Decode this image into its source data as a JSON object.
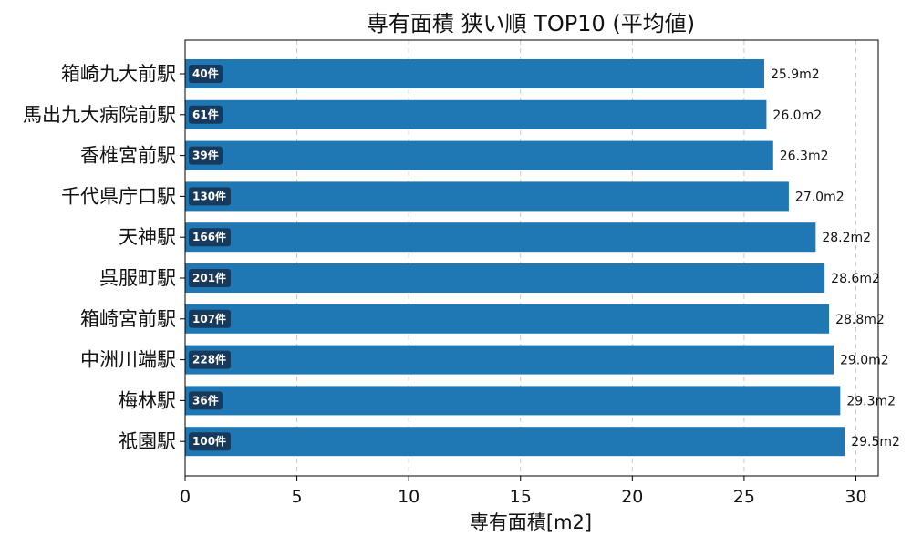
{
  "chart_data": {
    "type": "bar",
    "orientation": "horizontal",
    "title": "専有面積 狭い順 TOP10 (平均値)",
    "xlabel": "専有面積[m2]",
    "ylabel": "",
    "xlim": [
      0,
      31
    ],
    "xticks": [
      0,
      5,
      10,
      15,
      20,
      25,
      30
    ],
    "grid": "x-dashed",
    "bar_color": "#1f77b4",
    "badge_color": "#173a5c",
    "categories": [
      "箱崎九大前駅",
      "馬出九大病院前駅",
      "香椎宮前駅",
      "千代県庁口駅",
      "天神駅",
      "呉服町駅",
      "箱崎宮前駅",
      "中洲川端駅",
      "梅林駅",
      "祇園駅"
    ],
    "values": [
      25.9,
      26.0,
      26.3,
      27.0,
      28.2,
      28.6,
      28.8,
      29.0,
      29.3,
      29.5
    ],
    "value_labels": [
      "25.9m2",
      "26.0m2",
      "26.3m2",
      "27.0m2",
      "28.2m2",
      "28.6m2",
      "28.8m2",
      "29.0m2",
      "29.3m2",
      "29.5m2"
    ],
    "counts": [
      "40件",
      "61件",
      "39件",
      "130件",
      "166件",
      "201件",
      "107件",
      "228件",
      "36件",
      "100件"
    ]
  }
}
